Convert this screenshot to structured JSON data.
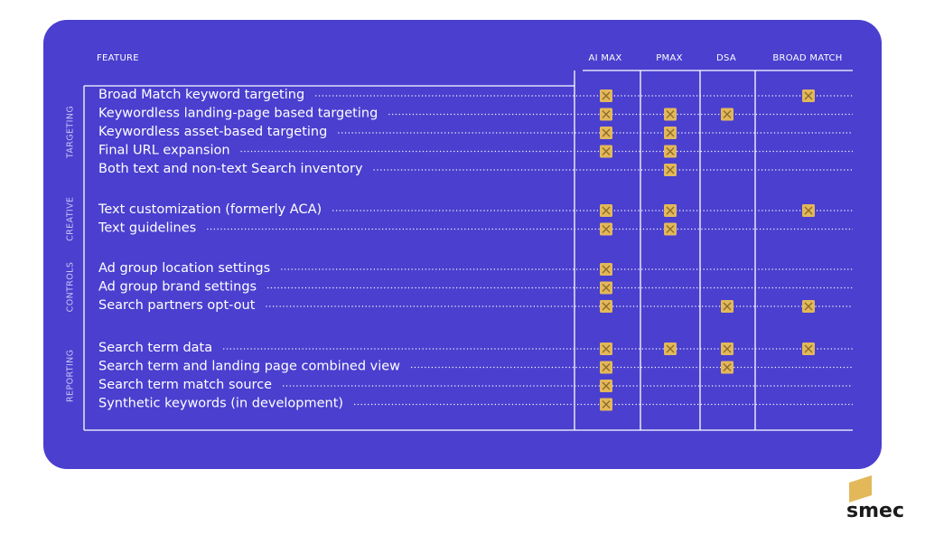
{
  "header": {
    "feature": "FEATURE",
    "columns": [
      "AI MAX",
      "PMAX",
      "DSA",
      "BROAD MATCH"
    ]
  },
  "groups": [
    {
      "label": "TARGETING",
      "rows": [
        {
          "feature": "Broad Match keyword targeting",
          "checks": [
            true,
            false,
            false,
            true
          ]
        },
        {
          "feature": "Keywordless landing-page based targeting",
          "checks": [
            true,
            true,
            true,
            false
          ]
        },
        {
          "feature": "Keywordless asset-based targeting",
          "checks": [
            true,
            true,
            false,
            false
          ]
        },
        {
          "feature": "Final URL expansion",
          "checks": [
            true,
            true,
            false,
            false
          ]
        },
        {
          "feature": "Both text and non-text Search inventory",
          "checks": [
            false,
            true,
            false,
            false
          ]
        }
      ]
    },
    {
      "label": "CREATIVE",
      "rows": [
        {
          "feature": "Text customization (formerly ACA)",
          "checks": [
            true,
            true,
            false,
            true
          ]
        },
        {
          "feature": "Text guidelines",
          "checks": [
            true,
            true,
            false,
            false
          ]
        }
      ]
    },
    {
      "label": "CONTROLS",
      "rows": [
        {
          "feature": "Ad group location settings",
          "checks": [
            true,
            false,
            false,
            false
          ]
        },
        {
          "feature": "Ad group brand settings",
          "checks": [
            true,
            false,
            false,
            false
          ]
        },
        {
          "feature": "Search partners opt-out",
          "checks": [
            true,
            false,
            true,
            true
          ]
        }
      ]
    },
    {
      "label": "REPORTING",
      "rows": [
        {
          "feature": "Search term data",
          "checks": [
            true,
            true,
            true,
            true
          ]
        },
        {
          "feature": "Search term and landing page combined view",
          "checks": [
            true,
            false,
            true,
            false
          ]
        },
        {
          "feature": "Search term match source",
          "checks": [
            true,
            false,
            false,
            false
          ]
        },
        {
          "feature": "Synthetic keywords (in development)",
          "checks": [
            true,
            false,
            false,
            false
          ]
        }
      ]
    }
  ],
  "logo": "smec"
}
